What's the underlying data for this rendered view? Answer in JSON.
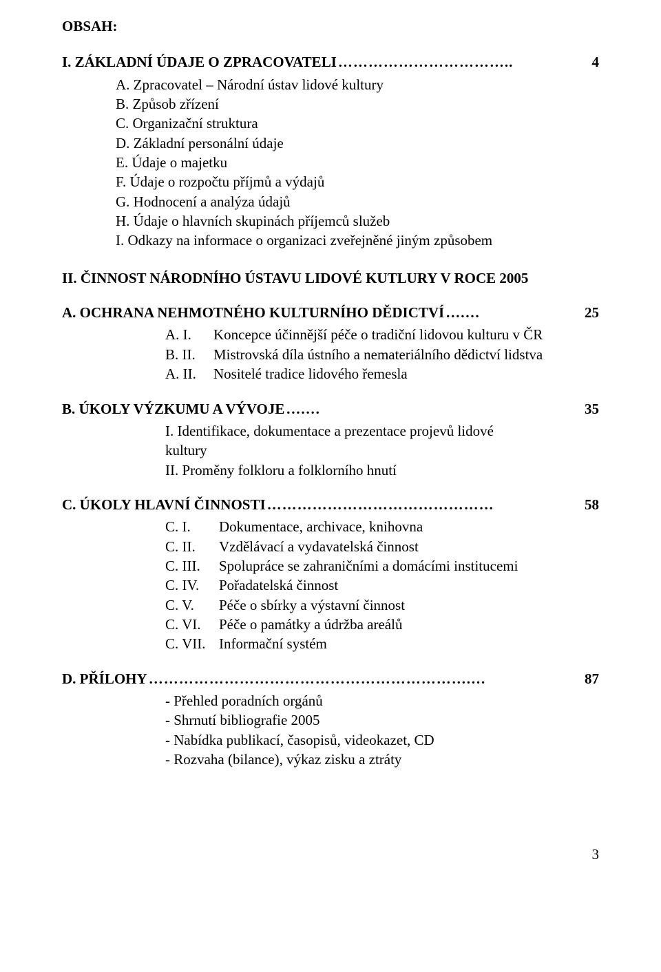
{
  "obsah_label": "OBSAH:",
  "section1": {
    "heading": "I. ZÁKLADNÍ ÚDAJE O ZPRACOVATELI",
    "page": "4",
    "items": [
      {
        "marker": "A.",
        "text": "Zpracovatel – Národní ústav lidové kultury"
      },
      {
        "marker": "B.",
        "text": "Způsob zřízení"
      },
      {
        "marker": "C.",
        "text": "Organizační struktura"
      },
      {
        "marker": "D.",
        "text": "Základní personální údaje"
      },
      {
        "marker": "E.",
        "text": "Údaje o majetku"
      },
      {
        "marker": "F.",
        "text": "Údaje o rozpočtu příjmů a výdajů"
      },
      {
        "marker": "G.",
        "text": "Hodnocení a analýza údajů"
      },
      {
        "marker": "H.",
        "text": "Údaje o hlavních skupinách příjemců služeb"
      },
      {
        "marker": "I.",
        "text": "Odkazy na informace o organizaci zveřejněné jiným způsobem"
      }
    ]
  },
  "section2_heading": "II. ČINNOST NÁRODNÍHO ÚSTAVU LIDOVÉ KUTLURY V ROCE  2005",
  "secA": {
    "heading": "A. OCHRANA NEHMOTNÉHO KULTURNÍHO DĚDICTVÍ",
    "page": "25",
    "items": [
      {
        "marker": "A.  I.",
        "text": "Koncepce účinnější péče o tradiční lidovou kulturu v ČR"
      },
      {
        "marker": "B.  II.",
        "text": "Mistrovská díla ústního a nemateriálního dědictví lidstva"
      },
      {
        "marker": "A.  II.",
        "text": "Nositelé tradice lidového řemesla"
      }
    ]
  },
  "secB": {
    "heading": "B. ÚKOLY VÝZKUMU A VÝVOJE",
    "page": "35",
    "line1a": "I. Identifikace, dokumentace a prezentace projevů lidové",
    "line1b": "kultury",
    "line2": "II. Proměny folkloru a folklorního hnutí"
  },
  "secC": {
    "heading": "C. ÚKOLY HLAVNÍ ČINNOSTI",
    "page": "58",
    "items": [
      {
        "marker": "C. I.",
        "text": "Dokumentace, archivace, knihovna"
      },
      {
        "marker": "C. II.",
        "text": "Vzdělávací a vydavatelská činnost"
      },
      {
        "marker": "C. III.",
        "text": "Spolupráce se zahraničními a domácími institucemi"
      },
      {
        "marker": "C. IV.",
        "text": "Pořadatelská činnost"
      },
      {
        "marker": "C. V.",
        "text": "Péče o sbírky a výstavní činnost"
      },
      {
        "marker": "C. VI.",
        "text": "Péče o památky a údržba areálů"
      },
      {
        "marker": "C. VII.",
        "text": "Informační systém"
      }
    ]
  },
  "secD": {
    "heading": "D. PŘÍLOHY",
    "page": "87",
    "items": [
      "- Přehled poradních orgánů",
      "- Shrnutí bibliografie 2005",
      "- Nabídka publikací, časopisů, videokazet, CD",
      "- Rozvaha (bilance), výkaz zisku a ztráty"
    ]
  },
  "leaders": {
    "dots_long": "……………………………..",
    "dots_a": "….…",
    "dots_b": "….…",
    "dots_c": "………………………………………",
    "dots_d": "……………………………………………………….…"
  },
  "page_number": "3"
}
